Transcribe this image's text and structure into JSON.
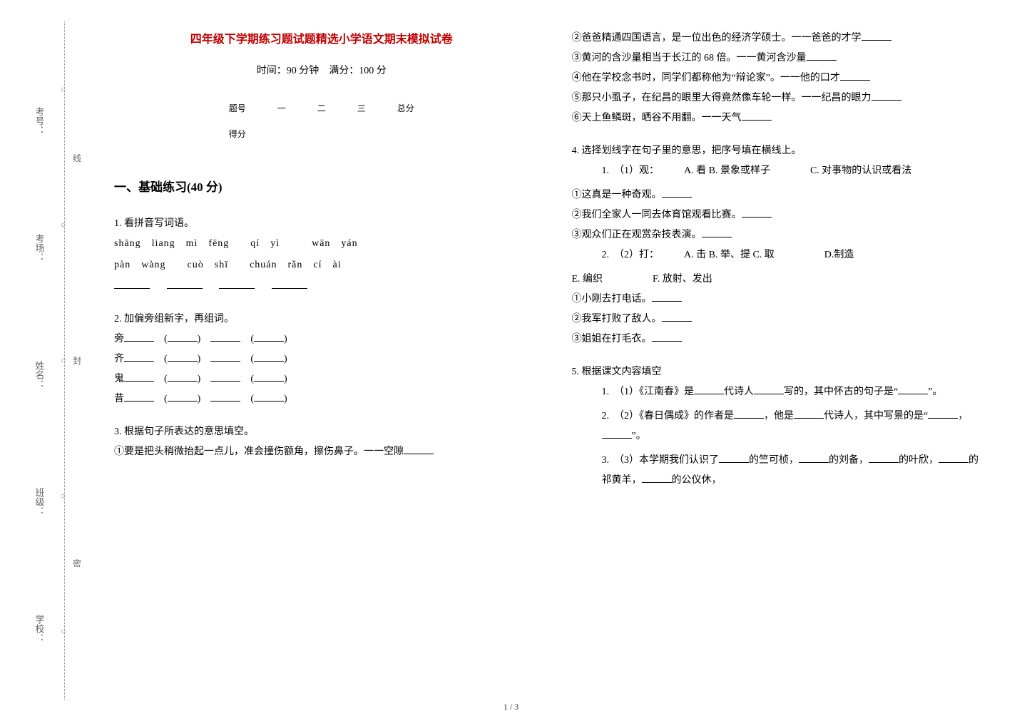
{
  "side": {
    "labels": [
      "考号：",
      "考场：",
      "姓名：",
      "班级：",
      "学校："
    ],
    "seal_chars": [
      "线",
      "封",
      "密"
    ],
    "circle_glyph": "○"
  },
  "header": {
    "title": "四年级下学期练习题试题精选小学语文期末模拟试卷",
    "subtitle": "时间：90 分钟　满分：100 分",
    "score_table": {
      "row1": [
        "题号",
        "一",
        "二",
        "三",
        "总分"
      ],
      "row2_label": "得分"
    }
  },
  "section1": {
    "title": "一、基础练习(40 分)",
    "q1": {
      "label": "1. 看拼音写词语。",
      "pinyin_line1": "shāng　liang　mì　fēng　　qí　yì　　　wān　yán",
      "pinyin_line2": "pàn　wàng　　cuò　shī　　chuán　rǎn　cí　ài"
    },
    "q2": {
      "label": "2. 加偏旁组新字，再组词。",
      "stems": [
        "旁",
        "齐",
        "鬼",
        "昔"
      ]
    },
    "q3": {
      "label": "3. 根据句子所表达的意思填空。",
      "items": [
        "①要是把头稍微抬起一点儿，准会撞伤额角，擦伤鼻子。一一空隙",
        "②爸爸精通四国语言，是一位出色的经济学硕士。一一爸爸的才学",
        "③黄河的含沙量相当于长江的 68 倍。一一黄河含沙量",
        "④他在学校念书时，同学们都称他为“辩论家”。一一他的口才",
        "⑤那只小虱子，在纪昌的眼里大得竟然像车轮一样。一一纪昌的眼力",
        "⑥天上鱼鳞斑，晒谷不用翻。一一天气"
      ]
    },
    "q4": {
      "label": "4. 选择划线字在句子里的意思，把序号填在横线上。",
      "group1": {
        "head_num": "1.",
        "head": "（1）观：　　　A. 看 B. 景象或样子　　　　C. 对事物的认识或看法",
        "items": [
          "①这真是一种奇观。",
          "②我们全家人一同去体育馆观看比赛。",
          "③观众们正在观赏杂技表演。"
        ]
      },
      "group2": {
        "head_num": "2.",
        "head": "（2）打：　　　A. 击 B. 举、提 C. 取　　　　　D.制造",
        "extra": "E. 编织　　　　　F. 放射、发出",
        "items": [
          "①小刚去打电话。",
          "②我军打败了敌人。",
          "③姐姐在打毛衣。"
        ]
      }
    },
    "q5": {
      "label": "5. 根据课文内容填空",
      "items": [
        {
          "num": "1.",
          "text_a": "（1）《江南春》是",
          "text_b": "代诗人",
          "text_c": "写的，其中怀古的句子是“",
          "text_d": "”。"
        },
        {
          "num": "2.",
          "text_a": "（2）《春日偶成》的作者是",
          "text_b": "，他是",
          "text_c": "代诗人，其中写景的是“",
          "text_d": "，",
          "text_e": "”。"
        },
        {
          "num": "3.",
          "text_a": "（3）本学期我们认识了",
          "text_b": "的竺可桢，",
          "text_c": "的刘备，",
          "text_d": "的叶欣，",
          "text_e": "的祁黄羊，",
          "text_f": "的公仪休，"
        }
      ]
    }
  },
  "footer": "1 / 3"
}
